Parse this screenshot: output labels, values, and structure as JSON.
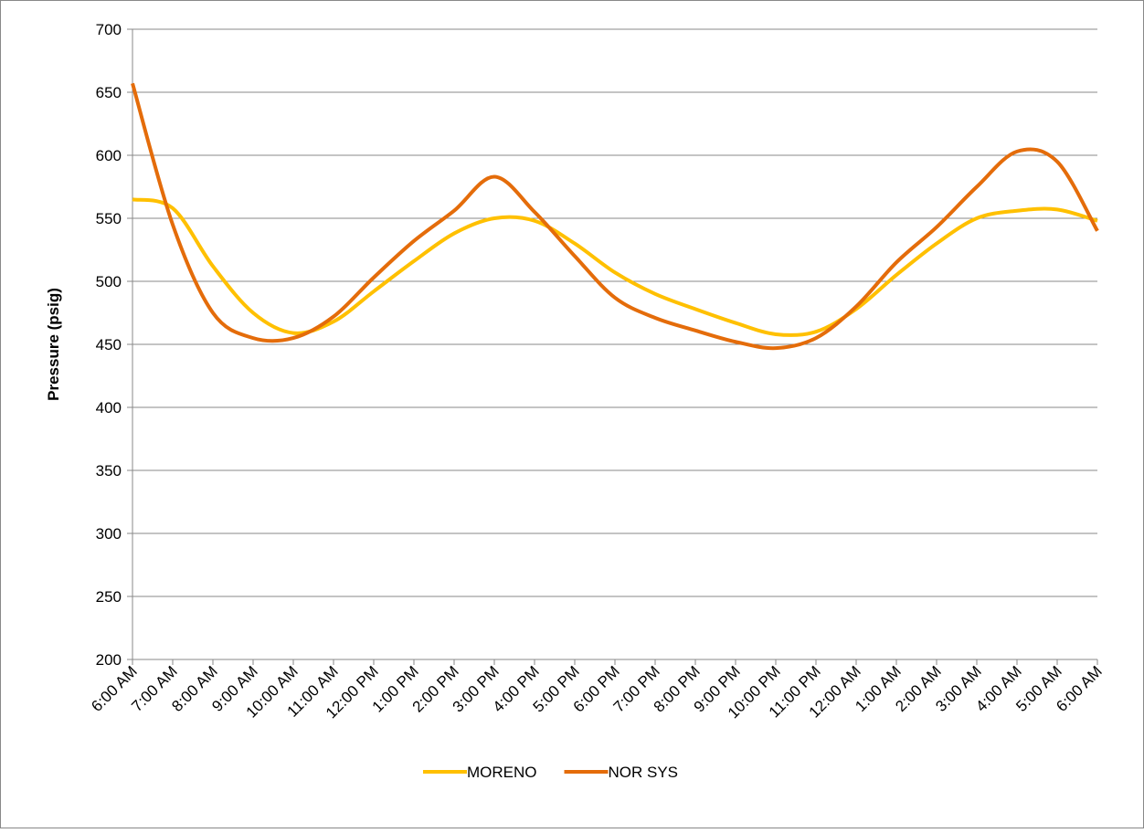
{
  "chart_data": {
    "type": "line",
    "y_label": "Pressure (psig)",
    "categories": [
      "6:00 AM",
      "7:00 AM",
      "8:00 AM",
      "9:00 AM",
      "10:00 AM",
      "11:00 AM",
      "12:00 PM",
      "1:00 PM",
      "2:00 PM",
      "3:00 PM",
      "4:00 PM",
      "5:00 PM",
      "6:00 PM",
      "7:00 PM",
      "8:00 PM",
      "9:00 PM",
      "10:00 PM",
      "11:00 PM",
      "12:00 AM",
      "1:00 AM",
      "2:00 AM",
      "3:00 AM",
      "4:00 AM",
      "5:00 AM",
      "6:00 AM"
    ],
    "series": [
      {
        "name": "MORENO",
        "color": "#ffc000",
        "values": [
          565,
          558,
          512,
          475,
          459,
          468,
          492,
          516,
          538,
          550,
          548,
          530,
          507,
          490,
          478,
          467,
          458,
          460,
          478,
          505,
          530,
          550,
          556,
          557,
          548
        ]
      },
      {
        "name": "NOR SYS",
        "color": "#e46c0a",
        "values": [
          657,
          545,
          475,
          455,
          455,
          472,
          503,
          532,
          556,
          583,
          555,
          520,
          487,
          471,
          461,
          452,
          447,
          455,
          480,
          515,
          543,
          575,
          603,
          595,
          540
        ]
      }
    ],
    "ylim": [
      200,
      700
    ],
    "yticks": [
      200,
      250,
      300,
      350,
      400,
      450,
      500,
      550,
      600,
      650,
      700
    ],
    "grid": true,
    "legend": "bottom"
  }
}
